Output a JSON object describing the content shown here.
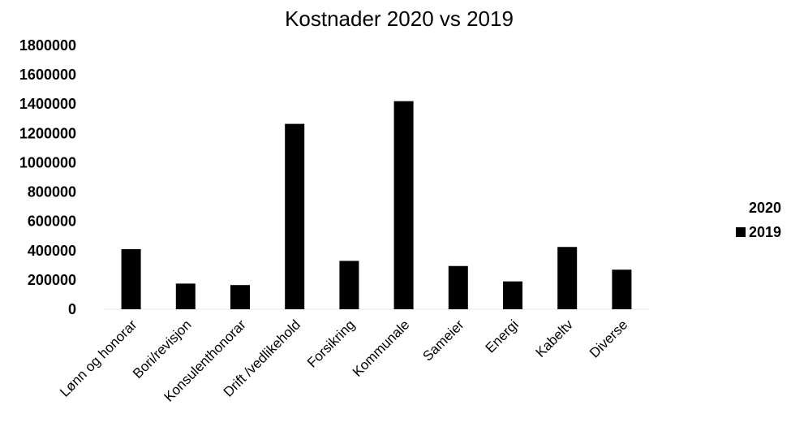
{
  "chart_data": {
    "type": "bar",
    "title": "Kostnader 2020 vs 2019",
    "xlabel": "",
    "ylabel": "",
    "ylim": [
      0,
      1800000
    ],
    "yticks": [
      0,
      200000,
      400000,
      600000,
      800000,
      1000000,
      1200000,
      1400000,
      1600000,
      1800000
    ],
    "categories": [
      "Lønn og honorar",
      "Bori/revisjon",
      "Konsulenthonorar",
      "Drift /vedlikehold",
      "Forsikring",
      "Kommunale",
      "Sameier",
      "Energi",
      "Kabeltv",
      "Diverse"
    ],
    "series": [
      {
        "name": "2020",
        "values": [
          null,
          null,
          null,
          null,
          null,
          null,
          null,
          null,
          null,
          null
        ],
        "color": "#ffffff"
      },
      {
        "name": "2019",
        "values": [
          410000,
          175000,
          165000,
          1265000,
          330000,
          1420000,
          295000,
          190000,
          425000,
          270000
        ],
        "color": "#000000"
      }
    ],
    "grid": false,
    "legend": {
      "position": "right",
      "entries": [
        "2020",
        "2019"
      ]
    }
  }
}
